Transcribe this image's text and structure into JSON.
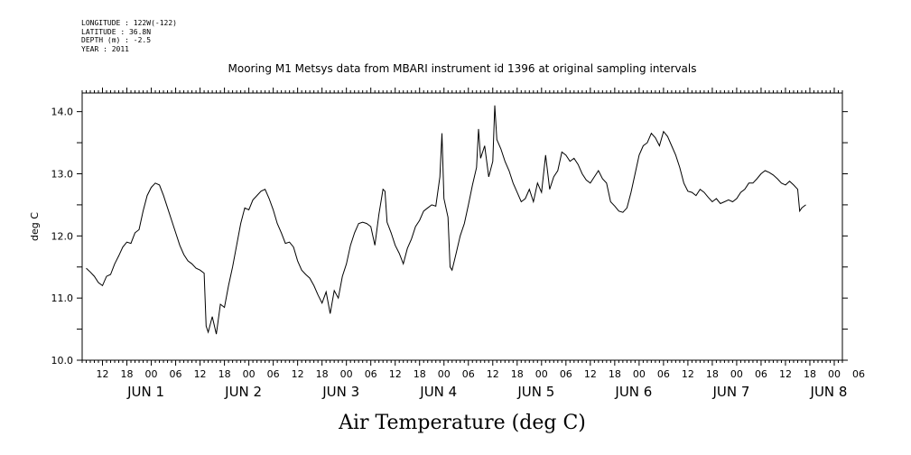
{
  "meta": {
    "longitude": "LONGITUDE : 122W(-122)",
    "latitude": "LATITUDE : 36.8N",
    "depth": "DEPTH (m) : -2.5",
    "year": "YEAR : 2011"
  },
  "chart_data": {
    "type": "line",
    "title": "Mooring M1 Metsys data from MBARI instrument id 1396 at original sampling intervals",
    "xlabel": "Air Temperature (deg C)",
    "ylabel": "deg C",
    "ylim": [
      10.0,
      14.3
    ],
    "yticks": [
      "10.0",
      "11.0",
      "12.0",
      "13.0",
      "14.0"
    ],
    "x_unit": "hours since JUN 1 00:00",
    "xlim": [
      -17,
      170
    ],
    "hour_tick_labels": [
      "12",
      "18",
      "00",
      "06",
      "12",
      "18",
      "00",
      "06",
      "12",
      "18",
      "00",
      "06",
      "12",
      "18",
      "00",
      "06",
      "12",
      "18",
      "00",
      "06",
      "12",
      "18",
      "00",
      "06",
      "12",
      "18",
      "00",
      "06",
      "12",
      "18",
      "00",
      "06"
    ],
    "date_labels": [
      "JUN 1",
      "JUN 2",
      "JUN 3",
      "JUN 4",
      "JUN 5",
      "JUN 6",
      "JUN 7",
      "JUN 8"
    ],
    "grid": false,
    "color": "#000000",
    "series": [
      {
        "points": [
          [
            -16,
            11.48
          ],
          [
            -15,
            11.42
          ],
          [
            -14,
            11.35
          ],
          [
            -13,
            11.25
          ],
          [
            -12,
            11.2
          ],
          [
            -11,
            11.35
          ],
          [
            -10,
            11.38
          ],
          [
            -9,
            11.55
          ],
          [
            -8,
            11.68
          ],
          [
            -7,
            11.82
          ],
          [
            -6,
            11.9
          ],
          [
            -5,
            11.88
          ],
          [
            -4,
            12.05
          ],
          [
            -3,
            12.1
          ],
          [
            -2,
            12.4
          ],
          [
            -1,
            12.65
          ],
          [
            0,
            12.78
          ],
          [
            1,
            12.85
          ],
          [
            2,
            12.82
          ],
          [
            3,
            12.65
          ],
          [
            4,
            12.45
          ],
          [
            5,
            12.25
          ],
          [
            6,
            12.05
          ],
          [
            7,
            11.85
          ],
          [
            8,
            11.7
          ],
          [
            9,
            11.6
          ],
          [
            10,
            11.55
          ],
          [
            11,
            11.48
          ],
          [
            12,
            11.45
          ],
          [
            13,
            11.4
          ],
          [
            13.5,
            10.55
          ],
          [
            14,
            10.45
          ],
          [
            15,
            10.7
          ],
          [
            16,
            10.42
          ],
          [
            17,
            10.9
          ],
          [
            18,
            10.85
          ],
          [
            19,
            11.2
          ],
          [
            20,
            11.5
          ],
          [
            21,
            11.85
          ],
          [
            22,
            12.2
          ],
          [
            23,
            12.45
          ],
          [
            24,
            12.42
          ],
          [
            25,
            12.58
          ],
          [
            26,
            12.65
          ],
          [
            27,
            12.72
          ],
          [
            28,
            12.75
          ],
          [
            29,
            12.6
          ],
          [
            30,
            12.42
          ],
          [
            31,
            12.2
          ],
          [
            32,
            12.05
          ],
          [
            33,
            11.88
          ],
          [
            34,
            11.9
          ],
          [
            35,
            11.82
          ],
          [
            36,
            11.6
          ],
          [
            37,
            11.45
          ],
          [
            38,
            11.38
          ],
          [
            39,
            11.32
          ],
          [
            40,
            11.2
          ],
          [
            41,
            11.05
          ],
          [
            42,
            10.92
          ],
          [
            43,
            11.1
          ],
          [
            44,
            10.75
          ],
          [
            45,
            11.12
          ],
          [
            46,
            11.0
          ],
          [
            47,
            11.35
          ],
          [
            48,
            11.55
          ],
          [
            49,
            11.85
          ],
          [
            50,
            12.05
          ],
          [
            51,
            12.2
          ],
          [
            52,
            12.22
          ],
          [
            53,
            12.2
          ],
          [
            54,
            12.15
          ],
          [
            55,
            11.85
          ],
          [
            56,
            12.35
          ],
          [
            57,
            12.75
          ],
          [
            57.5,
            12.72
          ],
          [
            58,
            12.22
          ],
          [
            59,
            12.05
          ],
          [
            60,
            11.85
          ],
          [
            61,
            11.72
          ],
          [
            62,
            11.55
          ],
          [
            63,
            11.8
          ],
          [
            64,
            11.95
          ],
          [
            65,
            12.15
          ],
          [
            66,
            12.25
          ],
          [
            67,
            12.4
          ],
          [
            68,
            12.45
          ],
          [
            69,
            12.5
          ],
          [
            70,
            12.48
          ],
          [
            71,
            12.95
          ],
          [
            71.5,
            13.65
          ],
          [
            72,
            12.6
          ],
          [
            73,
            12.3
          ],
          [
            73.5,
            11.5
          ],
          [
            74,
            11.45
          ],
          [
            75,
            11.72
          ],
          [
            76,
            12.0
          ],
          [
            77,
            12.2
          ],
          [
            78,
            12.5
          ],
          [
            79,
            12.82
          ],
          [
            80,
            13.1
          ],
          [
            80.5,
            13.72
          ],
          [
            81,
            13.25
          ],
          [
            82,
            13.45
          ],
          [
            83,
            12.95
          ],
          [
            84,
            13.2
          ],
          [
            84.5,
            14.1
          ],
          [
            85,
            13.55
          ],
          [
            86,
            13.4
          ],
          [
            87,
            13.2
          ],
          [
            88,
            13.05
          ],
          [
            89,
            12.85
          ],
          [
            90,
            12.7
          ],
          [
            91,
            12.55
          ],
          [
            92,
            12.6
          ],
          [
            93,
            12.75
          ],
          [
            94,
            12.55
          ],
          [
            95,
            12.85
          ],
          [
            96,
            12.7
          ],
          [
            97,
            13.3
          ],
          [
            98,
            12.75
          ],
          [
            99,
            12.95
          ],
          [
            100,
            13.05
          ],
          [
            101,
            13.35
          ],
          [
            102,
            13.3
          ],
          [
            103,
            13.2
          ],
          [
            104,
            13.25
          ],
          [
            105,
            13.15
          ],
          [
            106,
            13.0
          ],
          [
            107,
            12.9
          ],
          [
            108,
            12.85
          ],
          [
            109,
            12.95
          ],
          [
            110,
            13.05
          ],
          [
            111,
            12.92
          ],
          [
            112,
            12.85
          ],
          [
            113,
            12.55
          ],
          [
            114,
            12.48
          ],
          [
            115,
            12.4
          ],
          [
            116,
            12.38
          ],
          [
            117,
            12.45
          ],
          [
            118,
            12.7
          ],
          [
            119,
            13.0
          ],
          [
            120,
            13.3
          ],
          [
            121,
            13.45
          ],
          [
            122,
            13.5
          ],
          [
            123,
            13.65
          ],
          [
            124,
            13.58
          ],
          [
            125,
            13.45
          ],
          [
            126,
            13.68
          ],
          [
            127,
            13.6
          ],
          [
            128,
            13.45
          ],
          [
            129,
            13.3
          ],
          [
            130,
            13.1
          ],
          [
            131,
            12.85
          ],
          [
            132,
            12.72
          ],
          [
            133,
            12.7
          ],
          [
            134,
            12.65
          ],
          [
            135,
            12.75
          ],
          [
            136,
            12.7
          ],
          [
            137,
            12.62
          ],
          [
            138,
            12.55
          ],
          [
            139,
            12.6
          ],
          [
            140,
            12.52
          ],
          [
            141,
            12.55
          ],
          [
            142,
            12.58
          ],
          [
            143,
            12.55
          ],
          [
            144,
            12.6
          ],
          [
            145,
            12.7
          ],
          [
            146,
            12.75
          ],
          [
            147,
            12.85
          ],
          [
            148,
            12.85
          ],
          [
            149,
            12.92
          ],
          [
            150,
            13.0
          ],
          [
            151,
            13.05
          ],
          [
            152,
            13.02
          ],
          [
            153,
            12.98
          ],
          [
            154,
            12.92
          ],
          [
            155,
            12.85
          ],
          [
            156,
            12.82
          ],
          [
            157,
            12.88
          ],
          [
            158,
            12.82
          ],
          [
            159,
            12.75
          ],
          [
            159.5,
            12.4
          ],
          [
            160,
            12.45
          ],
          [
            161,
            12.5
          ]
        ]
      }
    ]
  }
}
